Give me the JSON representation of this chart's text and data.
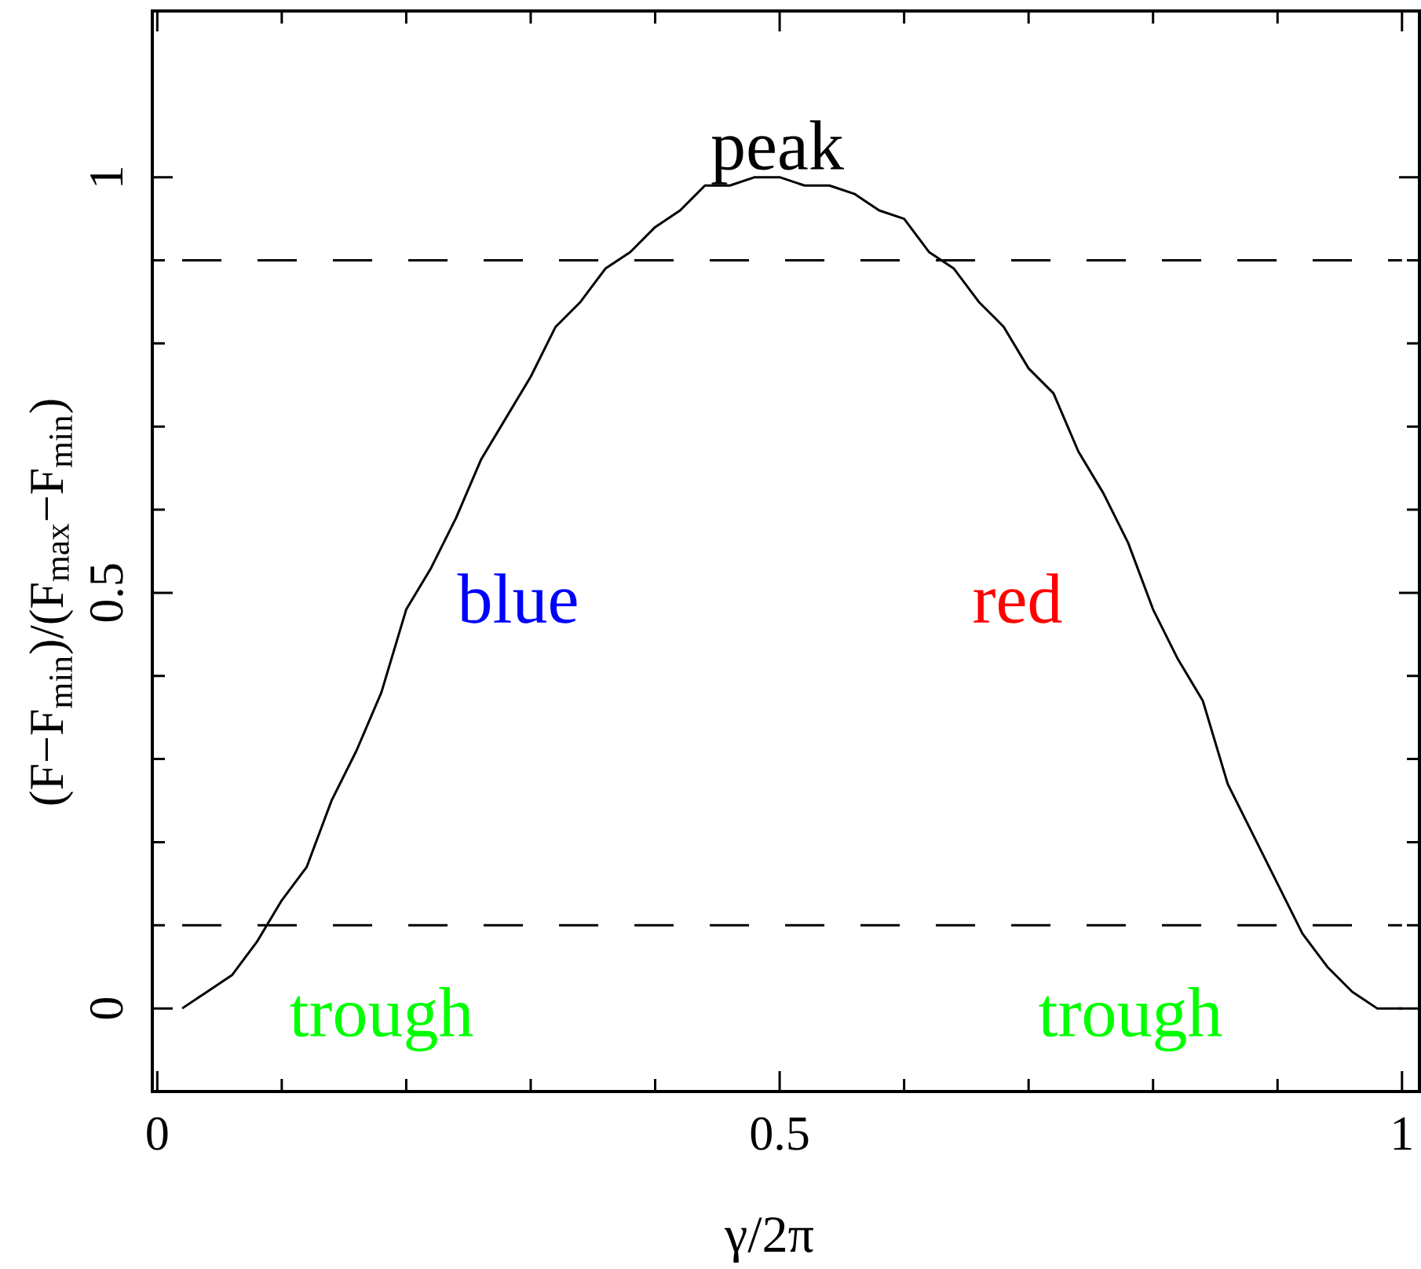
{
  "chart_data": {
    "type": "line",
    "xlabel": "γ/2π",
    "ylabel": "(F−F$_{min}$)/(F$_{max}$−F$_{min}$)",
    "x": [
      0.02,
      0.04,
      0.06,
      0.08,
      0.1,
      0.12,
      0.14,
      0.16,
      0.18,
      0.2,
      0.22,
      0.24,
      0.26,
      0.28,
      0.3,
      0.32,
      0.34,
      0.36,
      0.38,
      0.4,
      0.42,
      0.44,
      0.46,
      0.48,
      0.5,
      0.52,
      0.54,
      0.56,
      0.58,
      0.6,
      0.62,
      0.64,
      0.66,
      0.68,
      0.7,
      0.72,
      0.74,
      0.76,
      0.78,
      0.8,
      0.82,
      0.84,
      0.86,
      0.88,
      0.9,
      0.92,
      0.94,
      0.96,
      0.98,
      1.0
    ],
    "series": [
      {
        "color": "#000000",
        "values": [
          0.0,
          0.02,
          0.04,
          0.08,
          0.13,
          0.17,
          0.25,
          0.31,
          0.38,
          0.48,
          0.53,
          0.59,
          0.66,
          0.71,
          0.76,
          0.82,
          0.85,
          0.89,
          0.91,
          0.94,
          0.96,
          0.99,
          0.99,
          1.0,
          1.0,
          0.99,
          0.99,
          0.98,
          0.96,
          0.95,
          0.91,
          0.89,
          0.85,
          0.82,
          0.77,
          0.74,
          0.67,
          0.62,
          0.56,
          0.48,
          0.42,
          0.37,
          0.27,
          0.21,
          0.15,
          0.09,
          0.05,
          0.02,
          0.0,
          0.0
        ]
      }
    ],
    "marker": "none",
    "line_style": "solid",
    "xlim": [
      -0.004,
      1.014
    ],
    "ylim": [
      -0.1,
      1.2
    ],
    "xticks": [
      0,
      0.5,
      1
    ],
    "yticks": [
      0,
      0.5,
      1
    ],
    "ref_lines": [
      {
        "axis": "y",
        "value": 0.1,
        "line_style": "dashed",
        "color": "#000000"
      },
      {
        "axis": "y",
        "value": 0.9,
        "line_style": "dashed",
        "color": "#000000"
      }
    ],
    "annotations": [
      "peak",
      "blue",
      "red",
      "trough",
      "trough"
    ]
  }
}
